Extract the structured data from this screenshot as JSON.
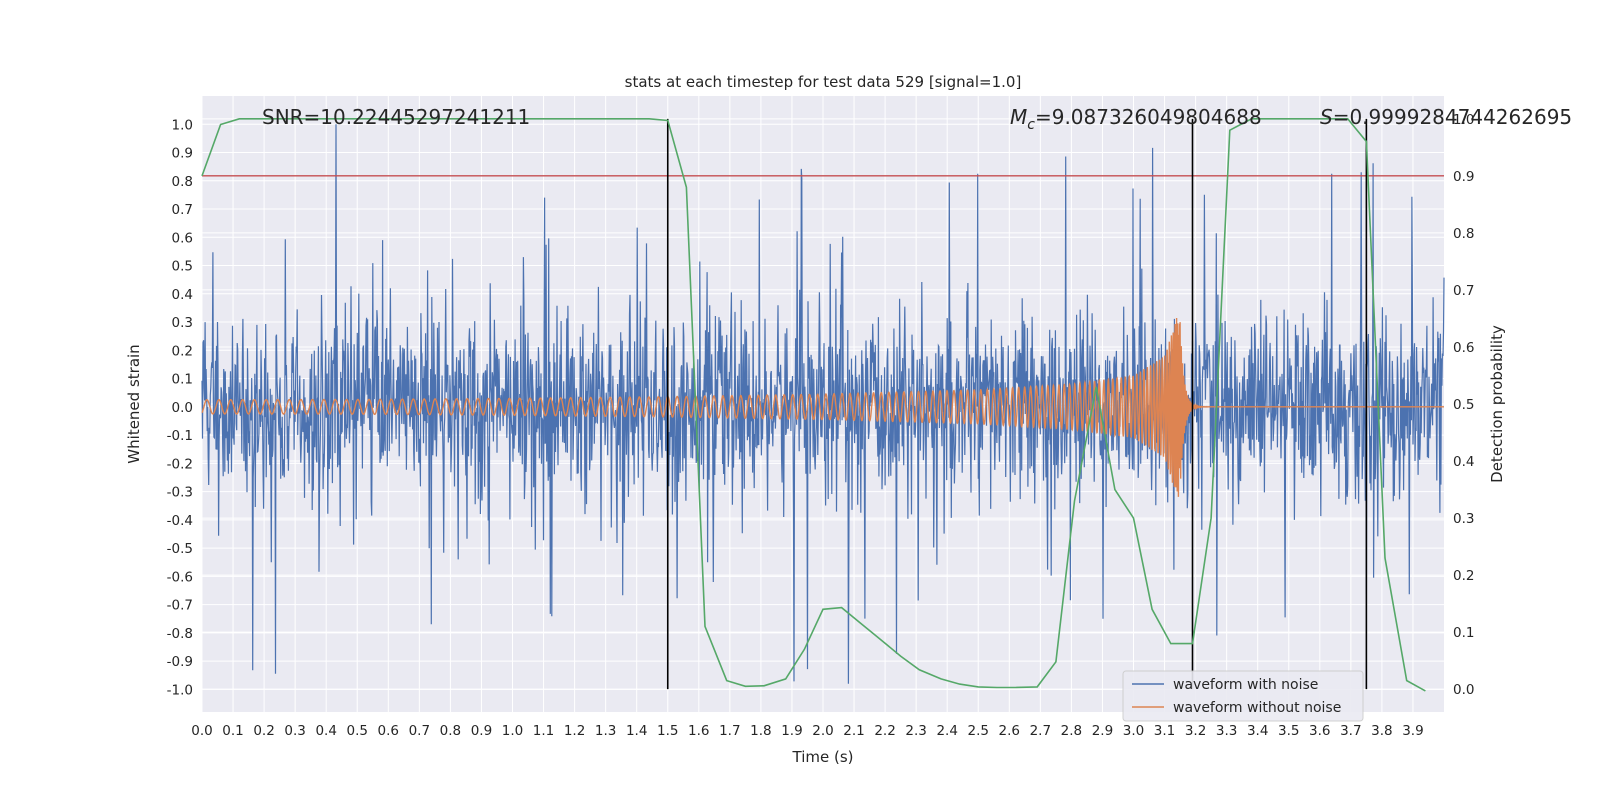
{
  "chart_data": {
    "type": "line",
    "title": "stats at each timestep for test data 529 [signal=1.0]",
    "xlabel": "Time (s)",
    "ylabel": "Whitened strain",
    "y2label": "Detection probability",
    "xlim": [
      0.0,
      4.0
    ],
    "ylim": [
      -1.08,
      1.1
    ],
    "y2lim": [
      -0.04,
      1.04
    ],
    "x_ticks": [
      "0.0",
      "0.1",
      "0.2",
      "0.3",
      "0.4",
      "0.5",
      "0.6",
      "0.7",
      "0.8",
      "0.9",
      "1.0",
      "1.1",
      "1.2",
      "1.3",
      "1.4",
      "1.5",
      "1.6",
      "1.7",
      "1.8",
      "1.9",
      "2.0",
      "2.1",
      "2.2",
      "2.3",
      "2.4",
      "2.5",
      "2.6",
      "2.7",
      "2.8",
      "2.9",
      "3.0",
      "3.1",
      "3.2",
      "3.3",
      "3.4",
      "3.5",
      "3.6",
      "3.7",
      "3.8",
      "3.9"
    ],
    "y_ticks": [
      "-1.0",
      "-0.9",
      "-0.8",
      "-0.7",
      "-0.6",
      "-0.5",
      "-0.4",
      "-0.3",
      "-0.2",
      "-0.1",
      "0.0",
      "0.1",
      "0.2",
      "0.3",
      "0.4",
      "0.5",
      "0.6",
      "0.7",
      "0.8",
      "0.9",
      "1.0"
    ],
    "y2_ticks": [
      "0.0",
      "0.1",
      "0.2",
      "0.3",
      "0.4",
      "0.5",
      "0.6",
      "0.7",
      "0.8",
      "0.9",
      "1.0"
    ],
    "grid": true,
    "legend_position": "lower right",
    "annotations": {
      "snr": "SNR=10.22445297241211",
      "mc": "M_c=9.087326049804688",
      "s": "S=0.9999284744262695"
    },
    "series": [
      {
        "name": "waveform with noise",
        "color": "#4c72b0",
        "description_values": "dense noise, roughly within -0.95 to 1.0"
      },
      {
        "name": "waveform without noise",
        "color": "#dd8452",
        "envelope_t": [
          0.0,
          0.5,
          1.0,
          1.5,
          2.0,
          2.5,
          2.8,
          3.0,
          3.1,
          3.14
        ],
        "envelope_amp": [
          0.025,
          0.026,
          0.03,
          0.036,
          0.045,
          0.06,
          0.08,
          0.11,
          0.18,
          0.32
        ],
        "merger_time": 3.15
      },
      {
        "name": "detection probability",
        "color": "#55a868",
        "axis": "right",
        "x": [
          0.0,
          0.06,
          0.12,
          0.19,
          0.25,
          0.31,
          0.38,
          0.44,
          0.5,
          0.56,
          0.62,
          0.69,
          0.75,
          0.81,
          0.88,
          0.94,
          1.0,
          1.06,
          1.12,
          1.19,
          1.25,
          1.31,
          1.38,
          1.44,
          1.5,
          1.56,
          1.62,
          1.69,
          1.75,
          1.81,
          1.88,
          1.94,
          2.0,
          2.06,
          2.12,
          2.19,
          2.25,
          2.31,
          2.38,
          2.44,
          2.5,
          2.56,
          2.62,
          2.69,
          2.75,
          2.81,
          2.88,
          2.94,
          3.0,
          3.06,
          3.12,
          3.19,
          3.25,
          3.31,
          3.38,
          3.44,
          3.5,
          3.56,
          3.62,
          3.69,
          3.75,
          3.81,
          3.88,
          3.94
        ],
        "y": [
          0.9,
          0.99,
          1.0,
          1.0,
          1.0,
          1.0,
          1.0,
          1.0,
          1.0,
          1.0,
          1.0,
          1.0,
          1.0,
          1.0,
          1.0,
          1.0,
          1.0,
          1.0,
          1.0,
          1.0,
          1.0,
          1.0,
          1.0,
          1.0,
          0.997,
          0.88,
          0.11,
          0.015,
          0.005,
          0.006,
          0.018,
          0.07,
          0.14,
          0.143,
          0.116,
          0.085,
          0.058,
          0.034,
          0.018,
          0.009,
          0.004,
          0.003,
          0.003,
          0.004,
          0.048,
          0.33,
          0.53,
          0.35,
          0.3,
          0.14,
          0.08,
          0.08,
          0.3,
          0.98,
          1.0,
          1.0,
          1.0,
          1.0,
          1.0,
          1.0,
          0.96,
          0.23,
          0.015,
          -0.003
        ]
      },
      {
        "name": "threshold",
        "color": "#c44e52",
        "axis": "right",
        "value": 0.9
      }
    ],
    "vlines": [
      1.5,
      3.19,
      3.75
    ]
  }
}
